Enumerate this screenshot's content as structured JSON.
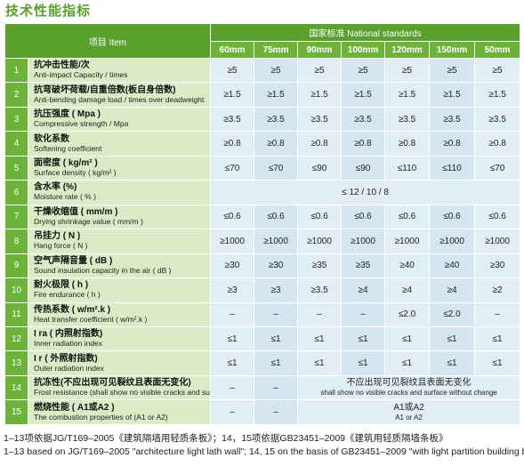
{
  "title": "技术性能指标",
  "header": {
    "item_label": "项目 Item",
    "standards_label": "国家标准 National standards",
    "columns": [
      "60mm",
      "75mm",
      "90mm",
      "100mm",
      "120mm",
      "150mm",
      "50mm"
    ]
  },
  "rows": [
    {
      "no": "1",
      "zh": "抗冲击性能/次",
      "en": "Anti-impact Capacity / times",
      "values": [
        "≥5",
        "≥5",
        "≥5",
        "≥5",
        "≥5",
        "≥5",
        "≥5"
      ]
    },
    {
      "no": "2",
      "zh": "抗弯破坏荷载/自重倍数(板自身倍数)",
      "en": "Anti-bending damage load / times over deadweight",
      "values": [
        "≥1.5",
        "≥1.5",
        "≥1.5",
        "≥1.5",
        "≥1.5",
        "≥1.5",
        "≥1.5"
      ]
    },
    {
      "no": "3",
      "zh": "抗压强度 ( Mpa )",
      "en": "Compressive strength / Mpa",
      "values": [
        "≥3.5",
        "≥3.5",
        "≥3.5",
        "≥3.5",
        "≥3.5",
        "≥3.5",
        "≥3.5"
      ]
    },
    {
      "no": "4",
      "zh": "软化系数",
      "en": "Softening coefficient",
      "values": [
        "≥0.8",
        "≥0.8",
        "≥0.8",
        "≥0.8",
        "≥0.8",
        "≥0.8",
        "≥0.8"
      ]
    },
    {
      "no": "5",
      "zh": "面密度 ( kg/m² )",
      "en": "Surface density ( kg/m² )",
      "values": [
        "≤70",
        "≤70",
        "≤90",
        "≤90",
        "≤110",
        "≤110",
        "≤70"
      ]
    },
    {
      "no": "6",
      "zh": "含水率 (%)",
      "en": "Moisture rate ( % )",
      "merged": "≤ 12 / 10 / 8"
    },
    {
      "no": "7",
      "zh": "干燥收缩值 ( mm/m )",
      "en": "Drying shrinkage value ( mm/m )",
      "values": [
        "≤0.6",
        "≤0.6",
        "≤0.6",
        "≤0.6",
        "≤0.6",
        "≤0.6",
        "≤0.6"
      ]
    },
    {
      "no": "8",
      "zh": "吊挂力 ( N )",
      "en": "Hang force ( N )",
      "values": [
        "≥1000",
        "≥1000",
        "≥1000",
        "≥1000",
        "≥1000",
        "≥1000",
        "≥1000"
      ]
    },
    {
      "no": "9",
      "zh": "空气声隔音量 ( dB )",
      "en": "Sound insulation capacity in the air ( dB )",
      "values": [
        "≥30",
        "≥30",
        "≥35",
        "≥35",
        "≥40",
        "≥40",
        "≥30"
      ]
    },
    {
      "no": "10",
      "zh": "耐火极限 ( h )",
      "en": "Fire endurance ( h )",
      "values": [
        "≥3",
        "≥3",
        "≥3.5",
        "≥4",
        "≥4",
        "≥4",
        "≥2"
      ]
    },
    {
      "no": "11",
      "zh": "传热系数 ( w/m².k )",
      "en": "Heat transfer coefficient ( w/m².k )",
      "values": [
        "–",
        "–",
        "–",
        "–",
        "≤2.0",
        "≤2.0",
        "–"
      ]
    },
    {
      "no": "12",
      "zh": "I ra ( 内照射指数)",
      "en": "Inner radiation index",
      "values": [
        "≤1",
        "≤1",
        "≤1",
        "≤1",
        "≤1",
        "≤1",
        "≤1"
      ]
    },
    {
      "no": "13",
      "zh": "I r ( 外照射指数)",
      "en": "Outer radiation index",
      "values": [
        "≤1",
        "≤1",
        "≤1",
        "≤1",
        "≤1",
        "≤1",
        "≤1"
      ]
    },
    {
      "no": "14",
      "zh": "抗冻性(不应出现可见裂纹且表面无变化)",
      "en": "Frost resistance (shall show no visible cracks and surface without change)",
      "first": [
        "–",
        "–"
      ],
      "merged": "不应出现可见裂纹且表面无变化",
      "merged_en": "shall show no visible cracks and surface without change"
    },
    {
      "no": "15",
      "zh": "燃烧性能 ( A1或A2 )",
      "en": "The combustion properties of (A1 or A2)",
      "first": [
        "–",
        "–"
      ],
      "merged": "A1或A2",
      "merged_en": "A1 or A2"
    }
  ],
  "footnotes": [
    "1–13项依据JG/T169–2005《建筑隔墙用轻质条板》；14，15项依据GB23451–2009《建筑用轻质隔墙条板》",
    "1–13 based on JG/T169–2005 \"architecture light lath wall\"; 14, 15 on the basis of GB23451–2009 \"with light partition building board\""
  ]
}
